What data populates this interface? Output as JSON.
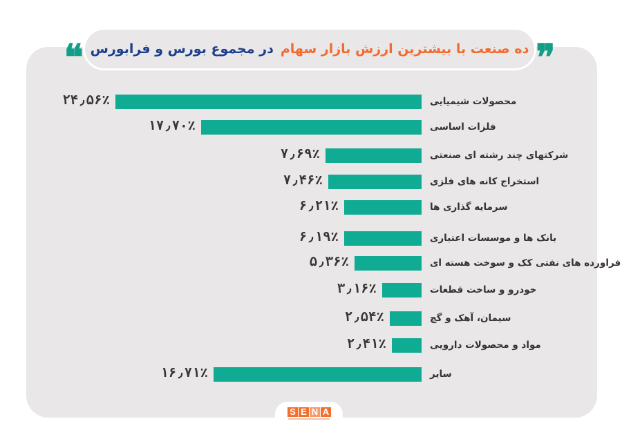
{
  "title": {
    "part1": "ده صنعت با بیشترین ارزش بازار سهام",
    "part2": "در مجموع بورس و فرابورس",
    "open_quote": "❞",
    "close_quote": "❝"
  },
  "colors": {
    "bar": "#0fac93",
    "card_bg": "#e9e7e8",
    "title_orange": "#f26a2c",
    "title_blue": "#1c3e8c",
    "quote_teal": "#139e88",
    "logo_orange": "#f36f2d"
  },
  "rows": [
    {
      "label": "محصولات شیمیایی",
      "value_text": "۲۴٫۵۶٪"
    },
    {
      "label": "فلزات اساسی",
      "value_text": "۱۷٫۷۰٪"
    },
    {
      "label": "شرکتهای چند رشته ای صنعتی",
      "value_text": "۷٫۶۹٪"
    },
    {
      "label": "استخراج کانه های فلزی",
      "value_text": "۷٫۴۶٪"
    },
    {
      "label": "سرمایه گذاری ها",
      "value_text": "۶٫۲۱٪"
    },
    {
      "label": "بانک ها و موسسات اعتباری",
      "value_text": "۶٫۱۹٪"
    },
    {
      "label": "فراورده های نفتی کک و سوخت هسته ای",
      "value_text": "۵٫۳۶٪"
    },
    {
      "label": "خودرو و ساخت قطعات",
      "value_text": "۳٫۱۶٪"
    },
    {
      "label": "سیمان، آهک و گچ",
      "value_text": "۲٫۵۴٪"
    },
    {
      "label": "مواد و محصولات دارویی",
      "value_text": "۲٫۴۱٪"
    },
    {
      "label": "سایر",
      "value_text": "۱۶٫۷۱٪"
    }
  ],
  "logo": {
    "letters": [
      "S",
      "E",
      "N",
      "A"
    ]
  },
  "chart_data": {
    "type": "bar",
    "orientation": "horizontal",
    "title": "ده صنعت با بیشترین ارزش بازار سهام در مجموع بورس و فرابورس",
    "categories": [
      "محصولات شیمیایی",
      "فلزات اساسی",
      "شرکتهای چند رشته ای صنعتی",
      "استخراج کانه های فلزی",
      "سرمایه گذاری ها",
      "بانک ها و موسسات اعتباری",
      "فراورده های نفتی کک و سوخت هسته ای",
      "خودرو و ساخت قطعات",
      "سیمان، آهک و گچ",
      "مواد و محصولات دارویی",
      "سایر"
    ],
    "values": [
      24.56,
      17.7,
      7.69,
      7.46,
      6.21,
      6.19,
      5.36,
      3.16,
      2.54,
      2.41,
      16.71
    ],
    "unit": "%",
    "xlabel": "",
    "ylabel": "",
    "grid": false,
    "legend": null,
    "data_labels": true
  }
}
